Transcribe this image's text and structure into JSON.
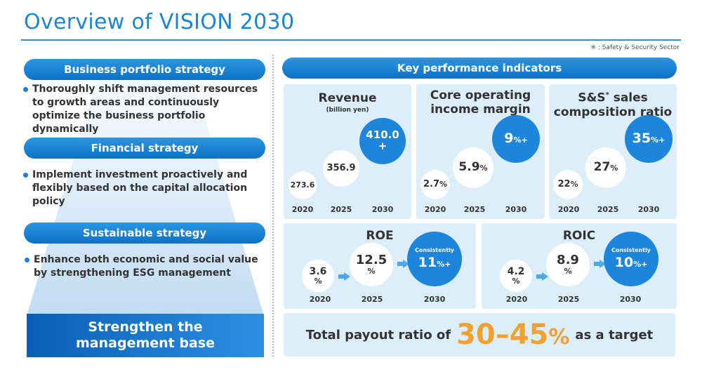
{
  "title": "Overview of VISION 2030",
  "note": "※ : Safety & Security Sector",
  "left": {
    "business": {
      "label": "Business portfolio strategy",
      "bullet": "Thoroughly shift management resources to growth areas and continuously optimize the business portfolio dynamically"
    },
    "financial": {
      "label": "Financial strategy",
      "bullet": "Implement investment proactively and flexibly based on the capital allocation policy"
    },
    "sustainable": {
      "label": "Sustainable strategy",
      "bullet": "Enhance both economic and social value by strengthening ESG management"
    },
    "base": {
      "line1": "Strengthen the",
      "line2": "management base"
    }
  },
  "kpi": {
    "header": "Key performance indicators",
    "revenue": {
      "title": "Revenue",
      "subtitle": "(billion yen)",
      "v2020": "273.6",
      "v2025": "356.9",
      "v2030": "410.0",
      "v2030_suffix": "+",
      "y2020": "2020",
      "y2025": "2025",
      "y2030": "2030"
    },
    "margin": {
      "title1": "Core operating",
      "title2": "income margin",
      "v2020": "2.7",
      "v2025": "5.9",
      "v2030": "9",
      "unit": "%",
      "unit_plus": "%+",
      "y2020": "2020",
      "y2025": "2025",
      "y2030": "2030"
    },
    "ss": {
      "title1": "S&S",
      "title_mark": "*",
      "title1_rest": " sales",
      "title2": "composition ratio",
      "v2020": "22",
      "v2025": "27",
      "v2030": "35",
      "unit": "%",
      "unit_plus": "%+",
      "y2020": "2020",
      "y2025": "2025",
      "y2030": "2030"
    },
    "roe": {
      "title": "ROE",
      "v2020": "3.6",
      "v2025": "12.5",
      "consistently": "Consistently",
      "v2030": "11",
      "unit": "%",
      "unit_plus": "%+",
      "y2020": "2020",
      "y2025": "2025",
      "y2030": "2030"
    },
    "roic": {
      "title": "ROIC",
      "v2020": "4.2",
      "v2025": "8.9",
      "consistently": "Consistently",
      "v2030": "10",
      "unit": "%",
      "unit_plus": "%+",
      "y2020": "2020",
      "y2025": "2025",
      "y2030": "2030"
    }
  },
  "payout": {
    "prefix": "Total payout ratio of",
    "value": "30–45",
    "unit": "%",
    "suffix": "as a target"
  }
}
